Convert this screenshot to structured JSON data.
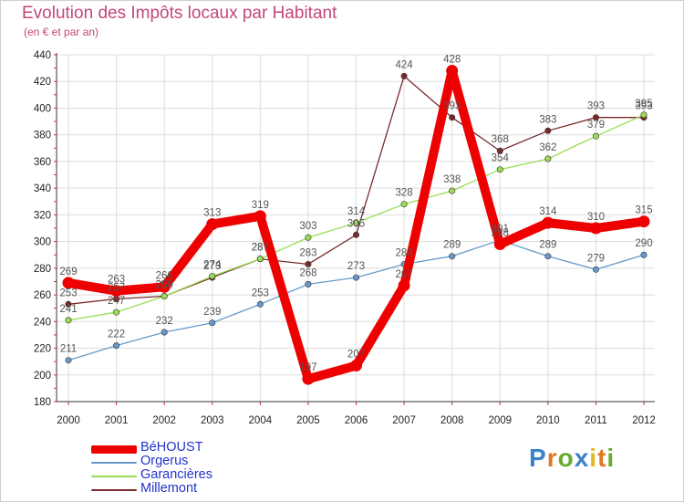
{
  "chart_data": {
    "type": "line",
    "title": "Evolution des Impôts locaux par Habitant",
    "subtitle": "(en € et par an)",
    "x": [
      "2000",
      "2001",
      "2002",
      "2003",
      "2004",
      "2005",
      "2006",
      "2007",
      "2008",
      "2009",
      "2010",
      "2011",
      "2012"
    ],
    "ylim": [
      180,
      440
    ],
    "yticks": [
      180,
      200,
      220,
      240,
      260,
      280,
      300,
      320,
      340,
      360,
      380,
      400,
      420,
      440
    ],
    "grid": true,
    "series": [
      {
        "name": "BéHOUST",
        "color": "#ee0000",
        "values": [
          269,
          263,
          266,
          313,
          319,
          197,
          207,
          267,
          428,
          298,
          314,
          310,
          315
        ]
      },
      {
        "name": "Orgerus",
        "color": "#6699cc",
        "values": [
          211,
          222,
          232,
          239,
          253,
          268,
          273,
          283,
          289,
          301,
          289,
          279,
          290
        ]
      },
      {
        "name": "Garancières",
        "color": "#99dd55",
        "values": [
          241,
          247,
          259,
          274,
          287,
          303,
          314,
          328,
          338,
          354,
          362,
          379,
          395
        ]
      },
      {
        "name": "Millemont",
        "color": "#7a2a2a",
        "values": [
          253,
          257,
          259,
          273,
          287,
          283,
          305,
          424,
          393,
          368,
          383,
          393,
          393
        ]
      }
    ],
    "legend_position": "bottom-left"
  },
  "brand": {
    "letters": [
      "P",
      "r",
      "o",
      "x",
      "i",
      "t",
      "i"
    ],
    "colors": [
      "#3b83c9",
      "#e07a1f",
      "#6aaa2e",
      "#3b83c9",
      "#e0b81f",
      "#e07a1f",
      "#6aaa2e"
    ]
  }
}
